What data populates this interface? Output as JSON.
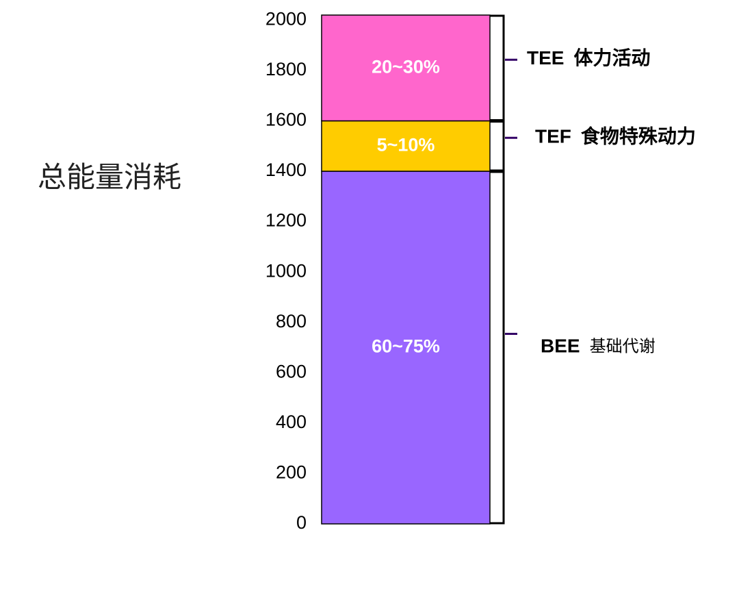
{
  "chart_data": {
    "type": "stacked-bar",
    "title": "总能量消耗",
    "categories": [
      null
    ],
    "series": [
      {
        "name": "BEE",
        "description": "基础代谢",
        "share": "60~75%",
        "color": "#9966ff",
        "values": [
          1400
        ]
      },
      {
        "name": "TEF",
        "description": "食物特殊动力",
        "share": "5~10%",
        "color": "#ffcc00",
        "values": [
          200
        ]
      },
      {
        "name": "TEE",
        "description": "体力活动",
        "share": "20~30%",
        "color": "#ff66cc",
        "values": [
          420
        ]
      }
    ],
    "ylim": [
      0,
      2020
    ],
    "yticks": [
      0,
      200,
      400,
      600,
      800,
      1000,
      1200,
      1400,
      1600,
      1800,
      2000
    ]
  }
}
